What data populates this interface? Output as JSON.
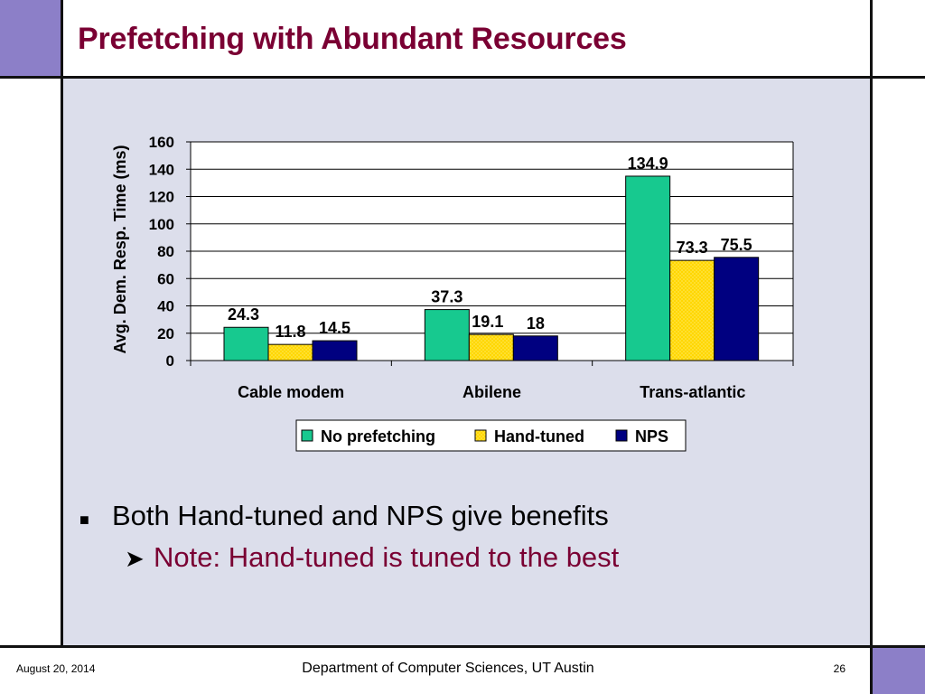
{
  "slide": {
    "title": "Prefetching with Abundant Resources"
  },
  "chart_data": {
    "type": "bar",
    "title": "",
    "xlabel": "",
    "ylabel": "Avg. Dem. Resp. Time (ms)",
    "ylim": [
      0,
      160
    ],
    "yticks": [
      "0",
      "20",
      "40",
      "60",
      "80",
      "100",
      "120",
      "140",
      "160"
    ],
    "categories": [
      "Cable modem",
      "Abilene",
      "Trans-atlantic"
    ],
    "series": [
      {
        "name": "No prefetching",
        "values": [
          24.3,
          37.3,
          134.9
        ],
        "labels": [
          "24.3",
          "37.3",
          "134.9"
        ],
        "color": "#17c98f"
      },
      {
        "name": "Hand-tuned",
        "values": [
          11.8,
          19.1,
          73.3
        ],
        "labels": [
          "11.8",
          "19.1",
          "73.3"
        ],
        "color": "#ffd700"
      },
      {
        "name": "NPS",
        "values": [
          14.5,
          18,
          75.5
        ],
        "labels": [
          "14.5",
          "18",
          "75.5"
        ],
        "color": "#000080"
      }
    ],
    "grid": true,
    "legend": "bottom"
  },
  "bullets": [
    {
      "text": "Both Hand-tuned and NPS give benefits",
      "subitems": [
        "Note: Hand-tuned is tuned to the best"
      ]
    }
  ],
  "footer": {
    "date": "August 20, 2014",
    "center": "Department of Computer Sciences, UT Austin",
    "page": "26"
  },
  "colors": {
    "title": "#7a0033",
    "accent": "#8c7fc8",
    "content_bg": "#dcdeeb"
  }
}
